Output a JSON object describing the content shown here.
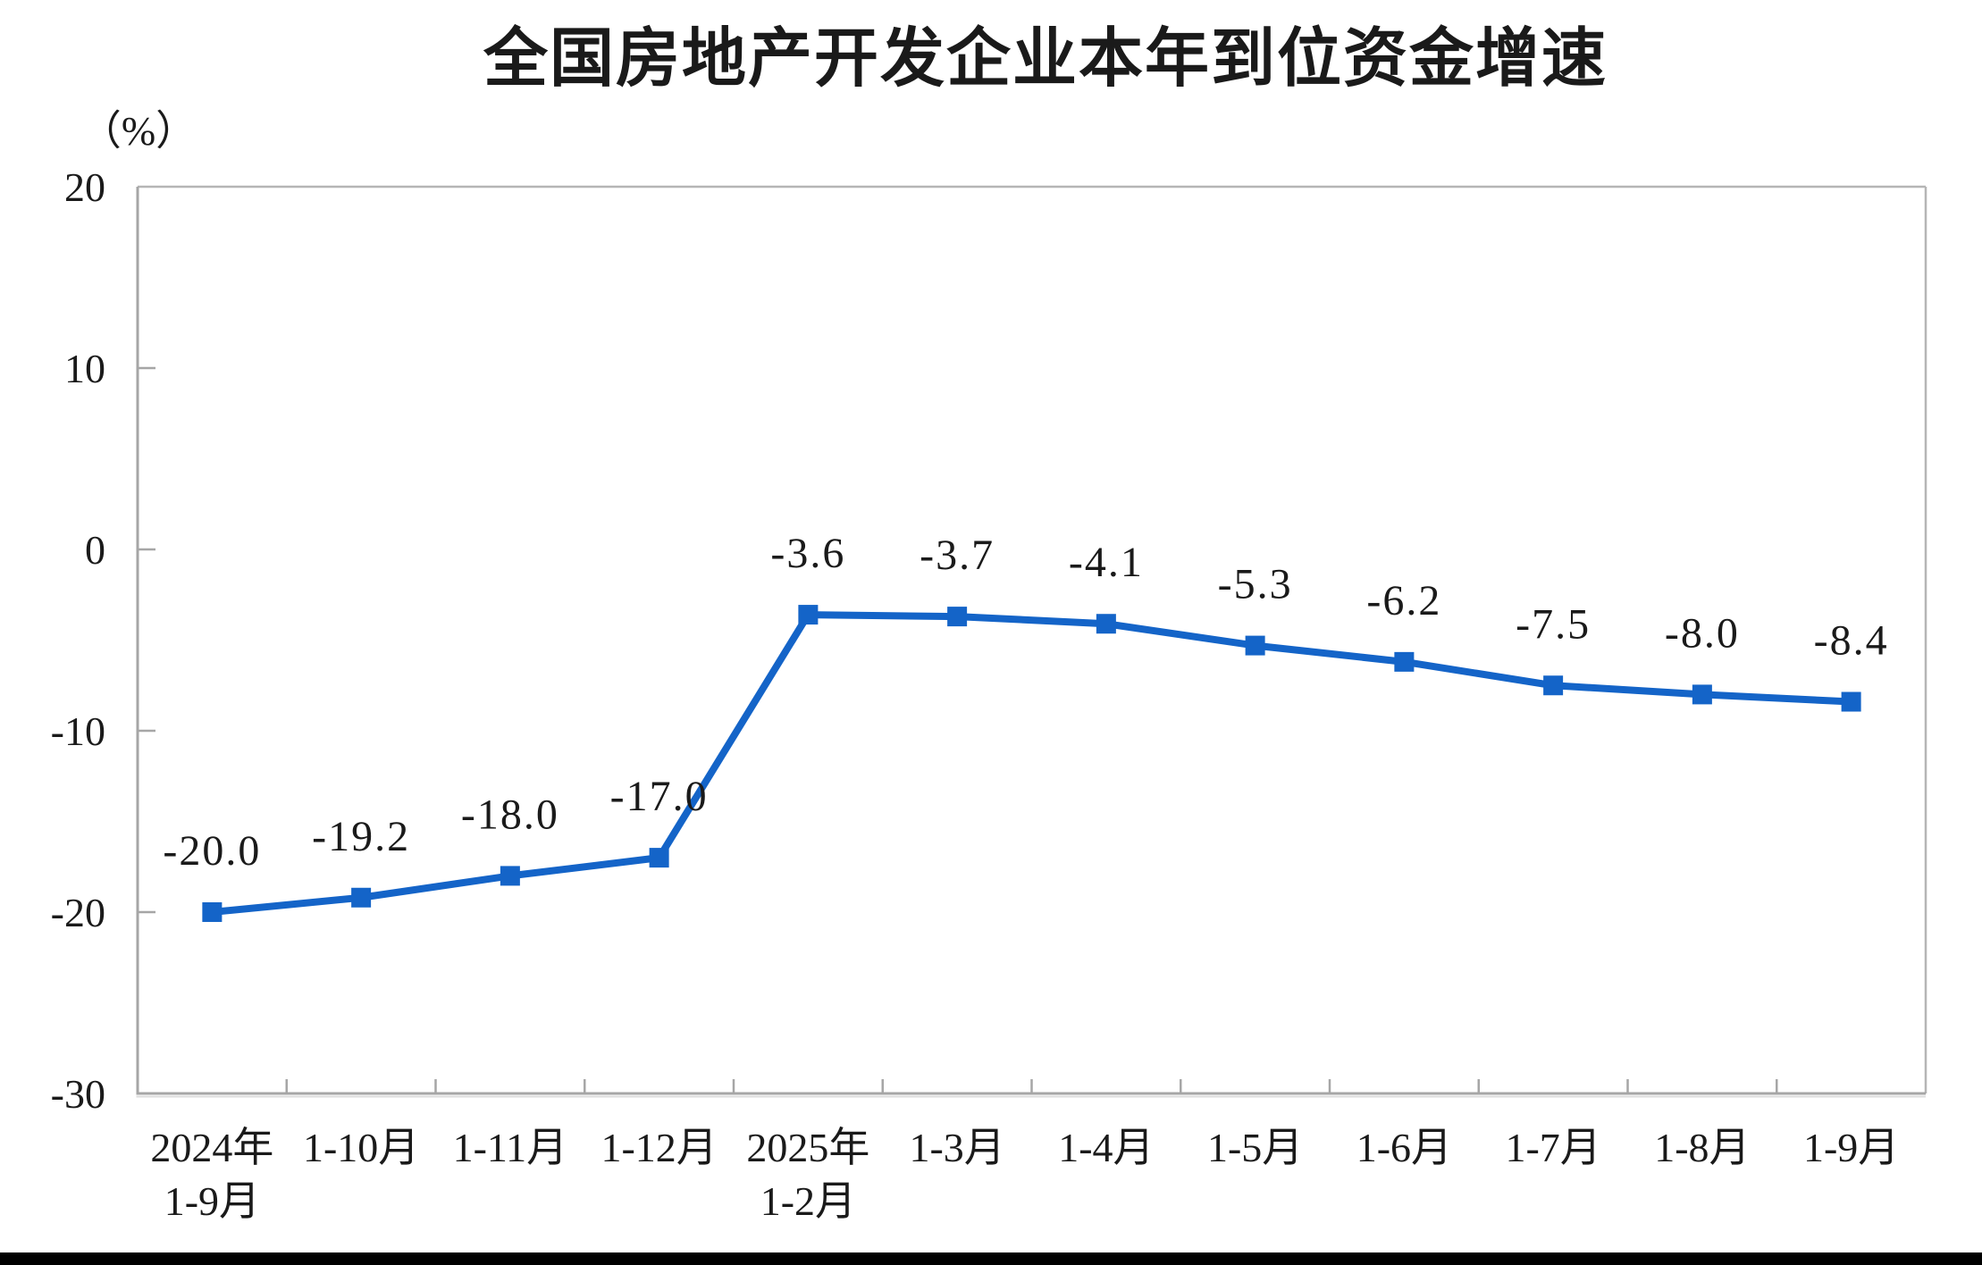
{
  "page": {
    "background": "#ffffff",
    "bottom_bar_color": "#000000"
  },
  "chart_data": {
    "type": "line",
    "title": "全国房地产开发企业本年到位资金增速",
    "unit_label": "（%）",
    "categories": [
      "2024年\n1-9月",
      "1-10月",
      "1-11月",
      "1-12月",
      "2025年\n1-2月",
      "1-3月",
      "1-4月",
      "1-5月",
      "1-6月",
      "1-7月",
      "1-8月",
      "1-9月"
    ],
    "series": [
      {
        "name": "本年到位资金增速",
        "values": [
          -20.0,
          -19.2,
          -18.0,
          -17.0,
          -3.6,
          -3.7,
          -4.1,
          -5.3,
          -6.2,
          -7.5,
          -8.0,
          -8.4
        ],
        "data_labels": [
          "-20.0",
          "-19.2",
          "-18.0",
          "-17.0",
          "-3.6",
          "-3.7",
          "-4.1",
          "-5.3",
          "-6.2",
          "-7.5",
          "-8.0",
          "-8.4"
        ]
      }
    ],
    "xlabel": "",
    "ylabel": "（%）",
    "ylim": [
      -30,
      20
    ],
    "yticks": [
      20,
      10,
      0,
      -10,
      -20,
      -30
    ],
    "grid": false,
    "legend": "none",
    "marker": "square",
    "colors": {
      "line": "#1464C8",
      "marker": "#1464C8",
      "axis": "#A6A6A6",
      "border": "#B5B5B5",
      "text": "#1a1a1a"
    }
  }
}
